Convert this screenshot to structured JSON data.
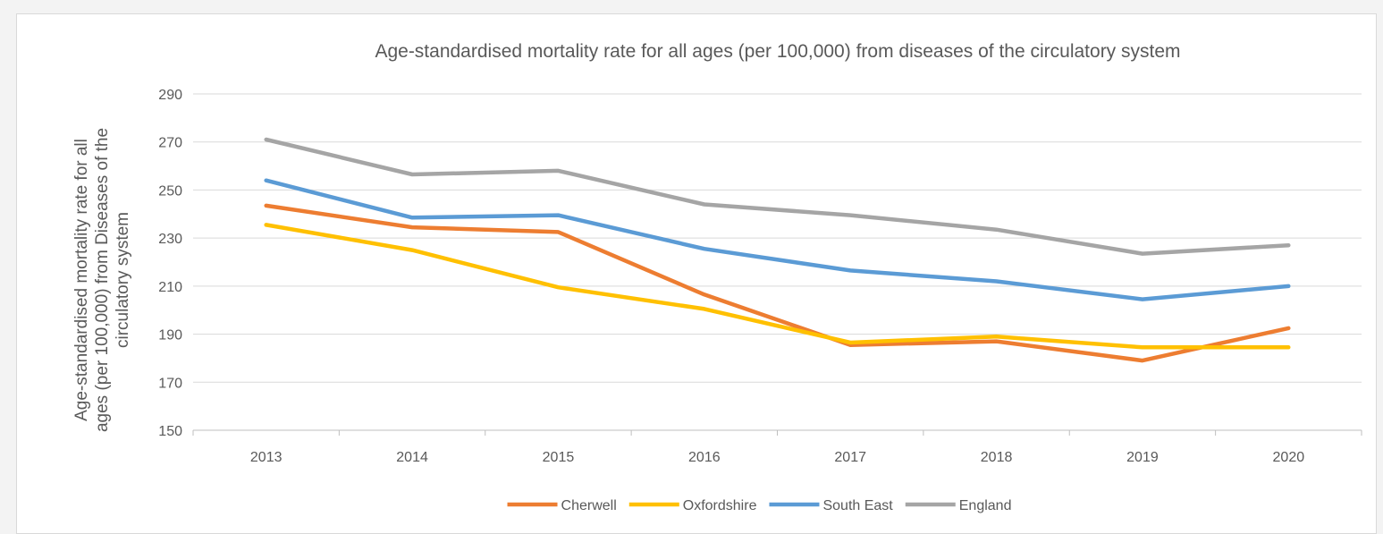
{
  "chart_data": {
    "type": "line",
    "title": "Age-standardised mortality rate for all ages (per 100,000) from diseases of the circulatory system",
    "ylabel_lines": [
      "Age-standardised mortality rate for all",
      "ages (per 100,000) from Diseases of the",
      "circulatory system"
    ],
    "xlabel": "",
    "categories": [
      "2013",
      "2014",
      "2015",
      "2016",
      "2017",
      "2018",
      "2019",
      "2020"
    ],
    "ylim": [
      150,
      290
    ],
    "yticks": [
      150,
      170,
      190,
      210,
      230,
      250,
      270,
      290
    ],
    "grid": true,
    "legend_position": "bottom",
    "series": [
      {
        "name": "Cherwell",
        "color": "#ED7D31",
        "values": [
          243.5,
          234.5,
          232.5,
          206.5,
          185.5,
          187,
          179,
          192.5
        ]
      },
      {
        "name": "Oxfordshire",
        "color": "#FFC000",
        "values": [
          235.5,
          225,
          209.5,
          200.5,
          186.5,
          189,
          184.5,
          184.5
        ]
      },
      {
        "name": "South East",
        "color": "#5B9BD5",
        "values": [
          254,
          238.5,
          239.5,
          225.5,
          216.5,
          212,
          204.5,
          210
        ]
      },
      {
        "name": "England",
        "color": "#A5A5A5",
        "values": [
          271,
          256.5,
          258,
          244,
          239.5,
          233.5,
          223.5,
          227
        ]
      }
    ]
  }
}
